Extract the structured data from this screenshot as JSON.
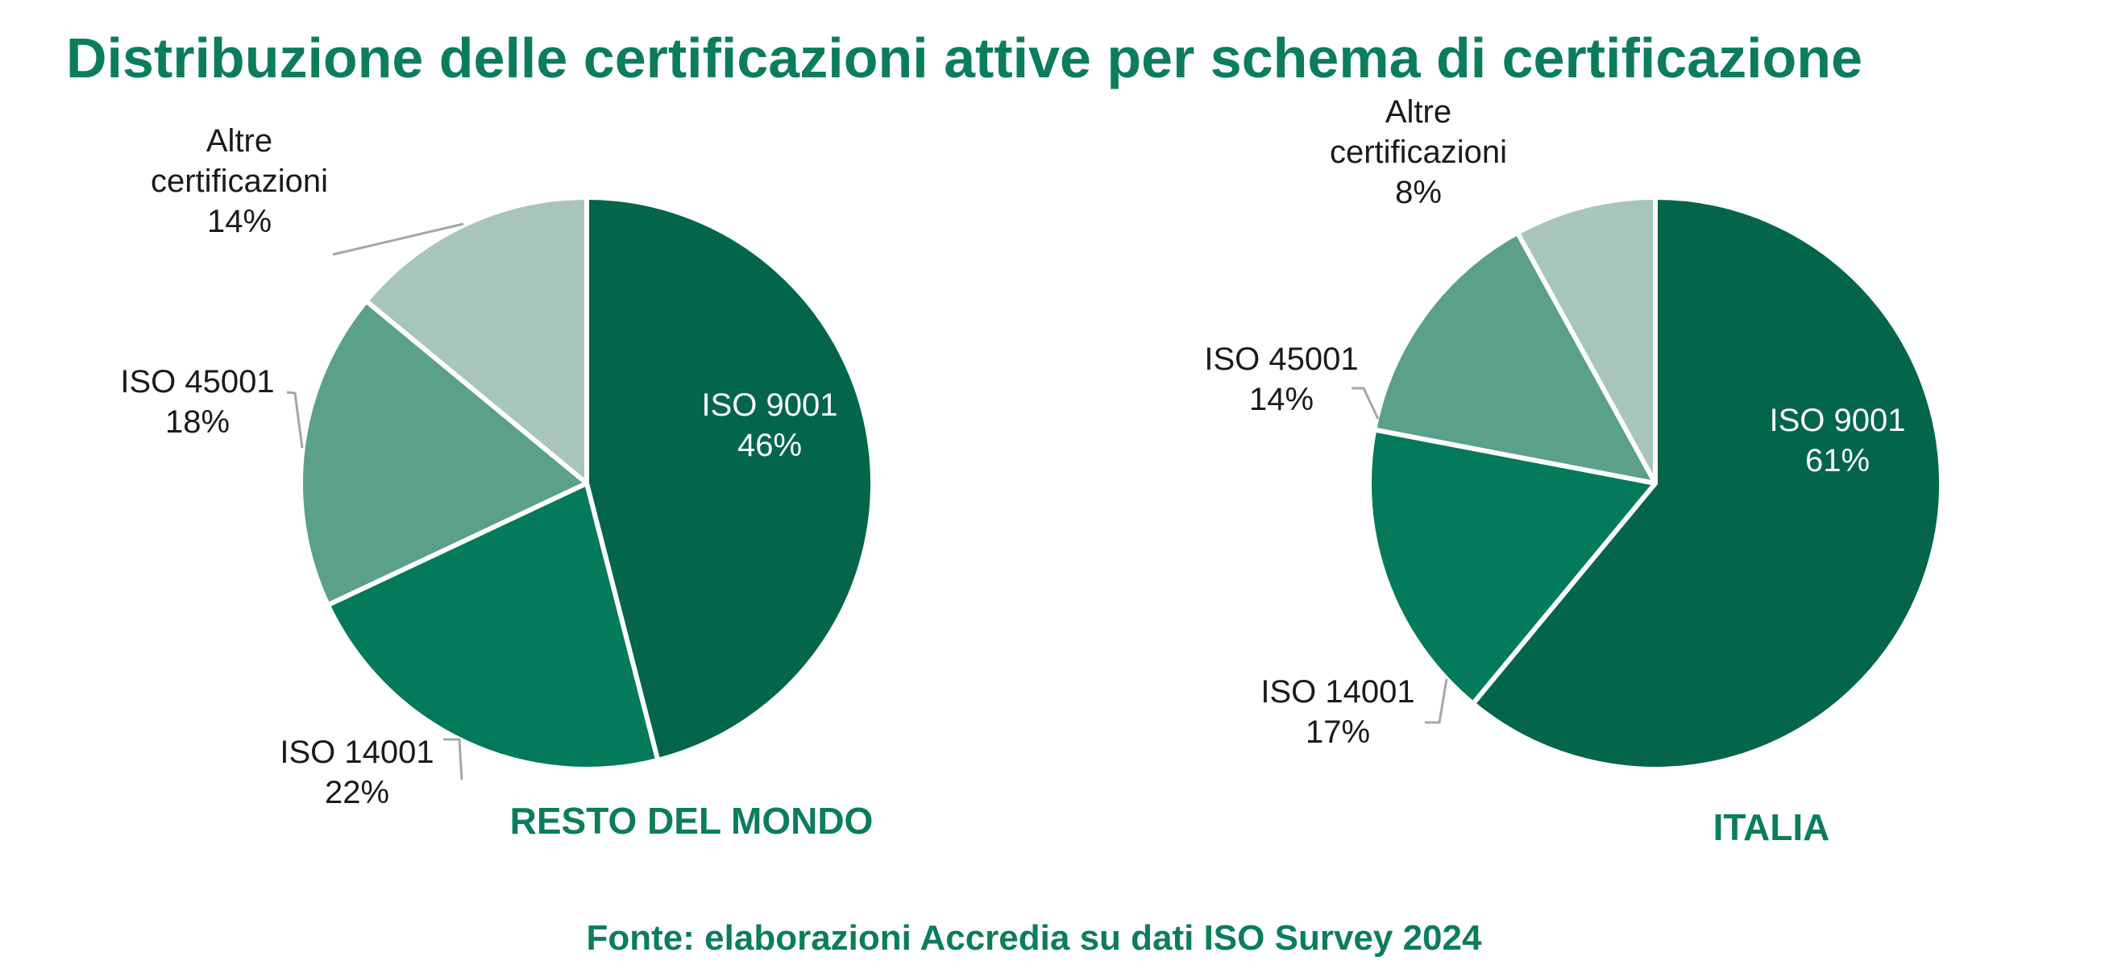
{
  "title": "Distribuzione delle certificazioni attive per schema di certificazione",
  "source": "Fonte: elaborazioni Accredia su dati ISO Survey 2024",
  "colors": {
    "iso9001": "#03664a",
    "iso14001": "#037a5a",
    "iso45001": "#5aa08a",
    "altre": "#a7c5bb",
    "title_green": "#0b7d5c",
    "slice_border": "#ffffff"
  },
  "chart_data": [
    {
      "type": "pie",
      "panel_label": "RESTO DEL MONDO",
      "slices": [
        {
          "name": "ISO 9001",
          "value": 46,
          "value_label": "46%"
        },
        {
          "name": "ISO 14001",
          "value": 22,
          "value_label": "22%"
        },
        {
          "name": "ISO 45001",
          "value": 18,
          "value_label": "18%"
        },
        {
          "name_lines": [
            "Altre",
            "certificazioni"
          ],
          "value": 14,
          "value_label": "14%"
        }
      ]
    },
    {
      "type": "pie",
      "panel_label": "ITALIA",
      "slices": [
        {
          "name": "ISO 9001",
          "value": 61,
          "value_label": "61%"
        },
        {
          "name": "ISO 14001",
          "value": 17,
          "value_label": "17%"
        },
        {
          "name": "ISO 45001",
          "value": 14,
          "value_label": "14%"
        },
        {
          "name_lines": [
            "Altre",
            "certificazioni"
          ],
          "value": 8,
          "value_label": "8%"
        }
      ]
    }
  ]
}
